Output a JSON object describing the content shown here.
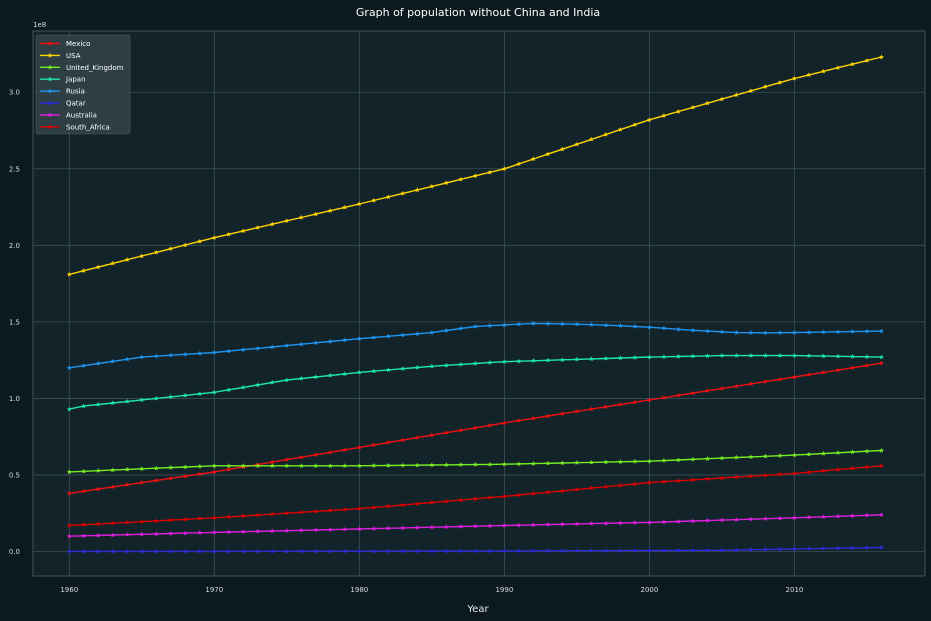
{
  "chart_data": {
    "type": "line",
    "title": "Graph of population without China and India",
    "xlabel": "Year",
    "ylabel": "",
    "y_offset_text": "1e8",
    "xlim": [
      1957.5,
      2019.0
    ],
    "ylim": [
      -0.16,
      3.4
    ],
    "x_ticks": [
      1960,
      1970,
      1980,
      1990,
      2000,
      2010
    ],
    "x_tick_labels": [
      "1960",
      "1970",
      "1980",
      "1990",
      "2000",
      "2010"
    ],
    "y_ticks": [
      0.0,
      0.5,
      1.0,
      1.5,
      2.0,
      2.5,
      3.0
    ],
    "y_tick_labels": [
      "0.0",
      "0.5",
      "1.0",
      "1.5",
      "2.0",
      "2.5",
      "3.0"
    ],
    "grid": true,
    "legend_position": "top-left",
    "x_start": 1960,
    "x_end": 2016,
    "series": [
      {
        "name": "Mexico",
        "color": "#ee1111",
        "anchors": [
          [
            1960,
            0.38
          ],
          [
            1970,
            0.52
          ],
          [
            1980,
            0.68
          ],
          [
            1990,
            0.84
          ],
          [
            2000,
            0.99
          ],
          [
            2010,
            1.14
          ],
          [
            2016,
            1.23
          ]
        ]
      },
      {
        "name": "USA",
        "color": "#ffd500",
        "anchors": [
          [
            1960,
            1.81
          ],
          [
            1970,
            2.05
          ],
          [
            1980,
            2.27
          ],
          [
            1990,
            2.5
          ],
          [
            2000,
            2.82
          ],
          [
            2010,
            3.09
          ],
          [
            2016,
            3.23
          ]
        ]
      },
      {
        "name": "United_Kingdom",
        "color": "#77ee22",
        "anchors": [
          [
            1960,
            0.52
          ],
          [
            1970,
            0.56
          ],
          [
            1980,
            0.56
          ],
          [
            1990,
            0.57
          ],
          [
            2000,
            0.59
          ],
          [
            2010,
            0.63
          ],
          [
            2016,
            0.66
          ]
        ]
      },
      {
        "name": "Japan",
        "color": "#1de9a6",
        "anchors": [
          [
            1960,
            0.93
          ],
          [
            1961,
            0.95
          ],
          [
            1970,
            1.04
          ],
          [
            1975,
            1.12
          ],
          [
            1980,
            1.17
          ],
          [
            1985,
            1.21
          ],
          [
            1990,
            1.24
          ],
          [
            2000,
            1.27
          ],
          [
            2005,
            1.28
          ],
          [
            2010,
            1.28
          ],
          [
            2016,
            1.27
          ]
        ]
      },
      {
        "name": "Rusia",
        "color": "#1e95f0",
        "anchors": [
          [
            1960,
            1.2
          ],
          [
            1965,
            1.27
          ],
          [
            1970,
            1.3
          ],
          [
            1980,
            1.39
          ],
          [
            1985,
            1.43
          ],
          [
            1988,
            1.47
          ],
          [
            1990,
            1.48
          ],
          [
            1992,
            1.49
          ],
          [
            1995,
            1.485
          ],
          [
            1998,
            1.475
          ],
          [
            2000,
            1.465
          ],
          [
            2003,
            1.445
          ],
          [
            2006,
            1.43
          ],
          [
            2008,
            1.428
          ],
          [
            2010,
            1.43
          ],
          [
            2013,
            1.435
          ],
          [
            2016,
            1.44
          ]
        ]
      },
      {
        "name": "Qatar",
        "color": "#2b2bd8",
        "anchors": [
          [
            1960,
            0.0005
          ],
          [
            1970,
            0.001
          ],
          [
            1980,
            0.002
          ],
          [
            1990,
            0.004
          ],
          [
            2000,
            0.006
          ],
          [
            2005,
            0.008
          ],
          [
            2010,
            0.017
          ],
          [
            2016,
            0.026
          ]
        ]
      },
      {
        "name": "Australia",
        "color": "#e01ee0",
        "anchors": [
          [
            1960,
            0.1
          ],
          [
            1970,
            0.125
          ],
          [
            1980,
            0.147
          ],
          [
            1990,
            0.17
          ],
          [
            2000,
            0.19
          ],
          [
            2010,
            0.22
          ],
          [
            2016,
            0.24
          ]
        ]
      },
      {
        "name": "South_Africa",
        "color": "#dd0000",
        "anchors": [
          [
            1960,
            0.17
          ],
          [
            1970,
            0.22
          ],
          [
            1980,
            0.28
          ],
          [
            1990,
            0.36
          ],
          [
            2000,
            0.45
          ],
          [
            2010,
            0.51
          ],
          [
            2016,
            0.56
          ]
        ]
      }
    ]
  }
}
